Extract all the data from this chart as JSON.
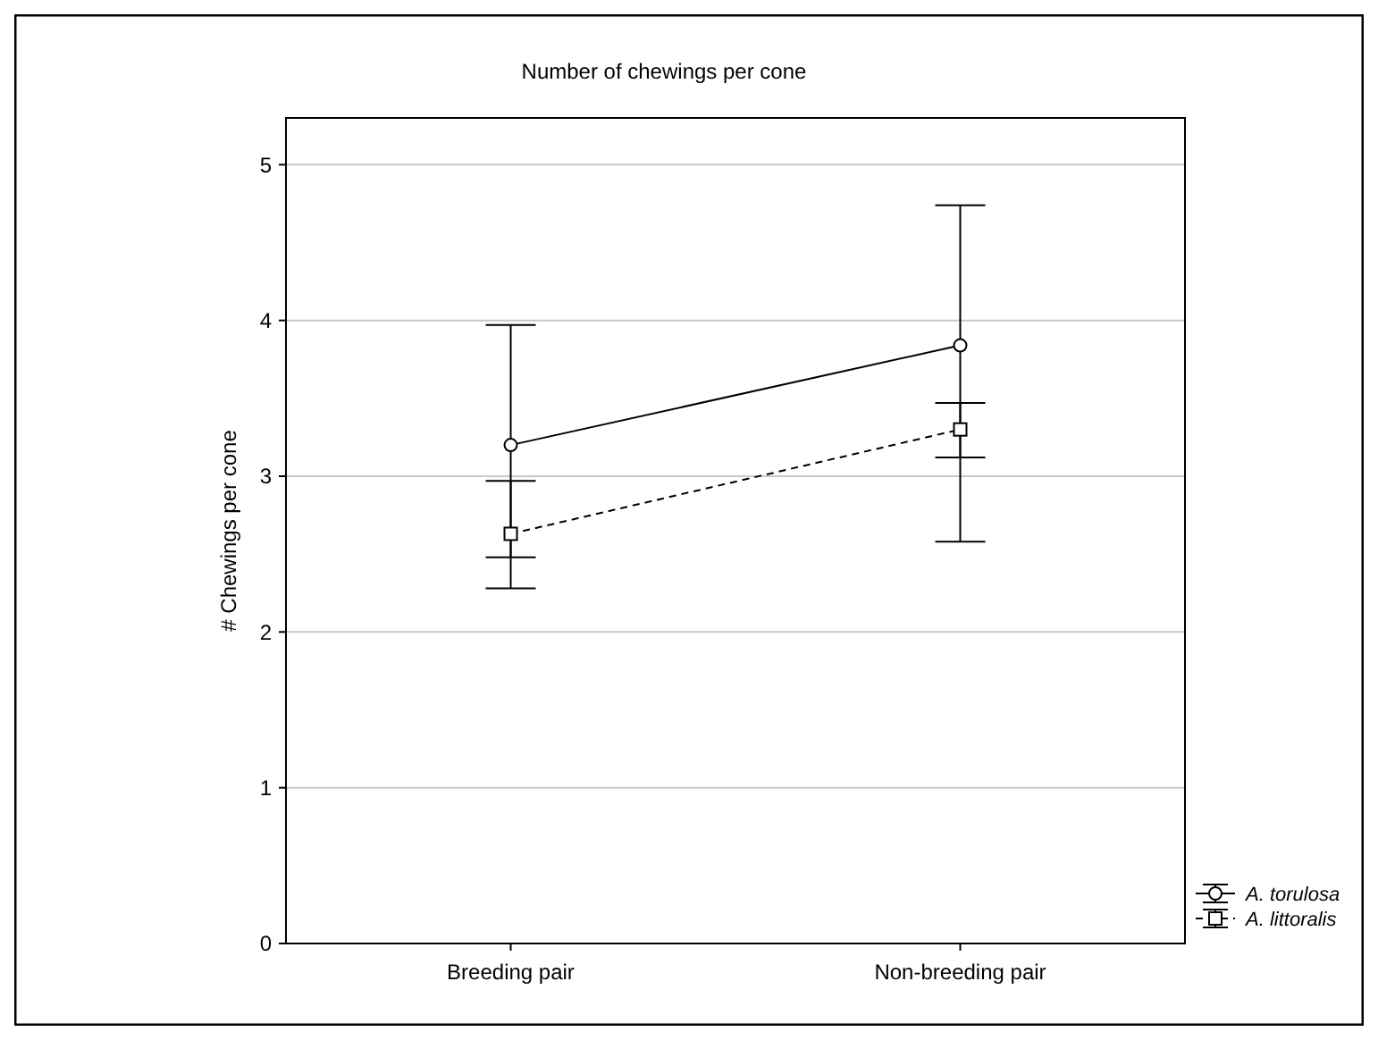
{
  "chart_data": {
    "type": "line",
    "title": "Number of chewings per cone",
    "ylabel": "# Chewings per cone",
    "categories": [
      "Breeding pair",
      "Non-breeding pair"
    ],
    "series": [
      {
        "name": "A. torulosa",
        "color": "#000000",
        "marker": "circle",
        "line_style": "solid",
        "values": [
          3.2,
          3.84
        ],
        "errors": [
          [
            2.48,
            3.97
          ],
          [
            2.58,
            4.74
          ]
        ]
      },
      {
        "name": "A. littoralis",
        "color": "#000000",
        "marker": "square",
        "line_style": "dashed",
        "values": [
          2.63,
          3.3
        ],
        "errors": [
          [
            2.28,
            2.97
          ],
          [
            3.12,
            3.47
          ]
        ]
      }
    ],
    "ylim": [
      0,
      5.3
    ],
    "yticks": [
      0,
      1,
      2,
      3,
      4,
      5
    ],
    "grid": "y",
    "legend": "bottom right"
  }
}
